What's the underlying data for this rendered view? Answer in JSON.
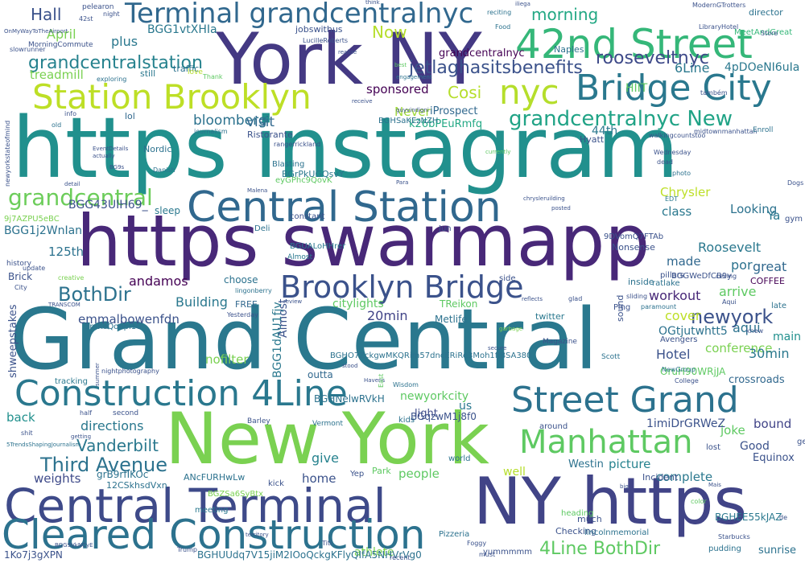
{
  "words": [
    {
      "t": "https instagram",
      "c": "#21908d"
    },
    {
      "t": "Grand Central",
      "c": "#2a788e"
    },
    {
      "t": "https swarmapp",
      "c": "#482878"
    },
    {
      "t": "York NY",
      "c": "#443983"
    },
    {
      "t": "New York",
      "c": "#7ad151"
    },
    {
      "t": "Central Terminal",
      "c": "#3e4a89"
    },
    {
      "t": "NY https",
      "c": "#414487"
    },
    {
      "t": "Cleared Construction",
      "c": "#2c728e"
    },
    {
      "t": "Central Station",
      "c": "#31688e"
    },
    {
      "t": "42nd Street",
      "c": "#35b779"
    },
    {
      "t": "Construction 4Line",
      "c": "#2a788e"
    },
    {
      "t": "Street Grand",
      "c": "#2c728e"
    },
    {
      "t": "Manhattan",
      "c": "#5ec962"
    },
    {
      "t": "Bridge City",
      "c": "#2a788e"
    },
    {
      "t": "Station Brooklyn",
      "c": "#bddf26"
    },
    {
      "t": "Brooklyn Bridge",
      "c": "#3b528b"
    },
    {
      "t": "Terminal grandcentralnyc",
      "c": "#31688e"
    },
    {
      "t": "nyc",
      "c": "#b5de2b"
    },
    {
      "t": "grandcentralnyc New",
      "c": "#20a386"
    },
    {
      "t": "grandcentralstation",
      "c": "#26828e"
    },
    {
      "t": "grandcentral",
      "c": "#6ccd5a"
    },
    {
      "t": "rooseveltnyc",
      "c": "#3e4a89"
    },
    {
      "t": "jetlaghasitsbenefits",
      "c": "#3b528b"
    },
    {
      "t": "Third Avenue",
      "c": "#2c728e"
    },
    {
      "t": "newyork",
      "c": "#3b528b"
    },
    {
      "t": "Vanderbilt",
      "c": "#2a788e"
    },
    {
      "t": "BothDir",
      "c": "#2c728e"
    },
    {
      "t": "4Line BothDir",
      "c": "#5ec962"
    },
    {
      "t": "Hall",
      "c": "#3b528b"
    },
    {
      "t": "morning",
      "c": "#22a884"
    },
    {
      "t": "Now",
      "c": "#b5de2b"
    },
    {
      "t": "Cosi",
      "c": "#b5de2b"
    },
    {
      "t": "April",
      "c": "#7ad151"
    },
    {
      "t": "plus",
      "c": "#2a788e"
    },
    {
      "t": "treadmill",
      "c": "#7ad151"
    },
    {
      "t": "bloomberg",
      "c": "#2c728e"
    },
    {
      "t": "visit",
      "c": "#31688e"
    },
    {
      "t": "Never",
      "c": "#a0da39"
    },
    {
      "t": "sponsored",
      "c": "#440154"
    },
    {
      "t": "Building",
      "c": "#2a788e"
    },
    {
      "t": "andamos",
      "c": "#440154"
    },
    {
      "t": "Roosevelt",
      "c": "#2a788e"
    },
    {
      "t": "great",
      "c": "#31688e"
    },
    {
      "t": "arrive",
      "c": "#5ec962"
    },
    {
      "t": "workout",
      "c": "#482878"
    },
    {
      "t": "conference",
      "c": "#7ad151"
    },
    {
      "t": "Hotel",
      "c": "#3b528b"
    },
    {
      "t": "30min",
      "c": "#2a788e"
    },
    {
      "t": "20min",
      "c": "#404387"
    },
    {
      "t": "aqui",
      "c": "#2c728e"
    },
    {
      "t": "cover",
      "c": "#bddf26"
    },
    {
      "t": "made",
      "c": "#31688e"
    },
    {
      "t": "por",
      "c": "#2c728e"
    },
    {
      "t": "class",
      "c": "#2a788e"
    },
    {
      "t": "Chrysler",
      "c": "#bddf26"
    },
    {
      "t": "Looking",
      "c": "#2c728e"
    },
    {
      "t": "Ya",
      "c": "#2a788e"
    },
    {
      "t": "picture",
      "c": "#26828e"
    },
    {
      "t": "complete",
      "c": "#2a788e"
    },
    {
      "t": "directions",
      "c": "#2a788e"
    },
    {
      "t": "weights",
      "c": "#3e4a89"
    },
    {
      "t": "give",
      "c": "#26828e"
    },
    {
      "t": "home",
      "c": "#3b528b"
    },
    {
      "t": "people",
      "c": "#5ec962"
    },
    {
      "t": "back",
      "c": "#21908d"
    },
    {
      "t": "bound",
      "c": "#404387"
    },
    {
      "t": "joke",
      "c": "#5ec962"
    },
    {
      "t": "Good",
      "c": "#3b528b"
    },
    {
      "t": "main",
      "c": "#21908d"
    },
    {
      "t": "sunrise",
      "c": "#2c728e"
    },
    {
      "t": "athlete",
      "c": "#7ad151"
    },
    {
      "t": "emmalbowenfdn",
      "c": "#3b528b"
    },
    {
      "t": "newyorkcity",
      "c": "#5ec962"
    },
    {
      "t": "citylights",
      "c": "#5ec962"
    },
    {
      "t": "BGG1vtXHIa",
      "c": "#2a788e"
    },
    {
      "t": "BGG43UIH69_",
      "c": "#3b528b"
    },
    {
      "t": "BGG1j2WnIan",
      "c": "#2c728e"
    },
    {
      "t": "125th",
      "c": "#2c728e"
    },
    {
      "t": "nofilter",
      "c": "#7ad151"
    },
    {
      "t": "outta",
      "c": "#31688e"
    },
    {
      "t": "light",
      "c": "#3e4a89"
    },
    {
      "t": "us",
      "c": "#2a788e"
    },
    {
      "t": "kids",
      "c": "#2c728e"
    },
    {
      "t": "1imiDrGRWeZ",
      "c": "#3b528b"
    },
    {
      "t": "OGtjutwhtt5",
      "c": "#2c728e"
    },
    {
      "t": "k26bPEuRmfq",
      "c": "#22a884"
    },
    {
      "t": "iProspect",
      "c": "#31688e"
    },
    {
      "t": "grandcentralnyc",
      "c": "#440154"
    },
    {
      "t": "HIIT",
      "c": "#5ec962"
    },
    {
      "t": "6Line",
      "c": "#2a788e"
    },
    {
      "t": "4pDOeNI6uIa",
      "c": "#2a788e"
    },
    {
      "t": "44th",
      "c": "#2a788e"
    },
    {
      "t": "Metlife",
      "c": "#2c728e"
    },
    {
      "t": "TReikon",
      "c": "#5ec962"
    },
    {
      "t": "Westin",
      "c": "#2c728e"
    },
    {
      "t": "Equinox",
      "c": "#3b528b"
    },
    {
      "t": "Nordic",
      "c": "#2c728e"
    },
    {
      "t": "Ristorante",
      "c": "#3b528b"
    },
    {
      "t": "sleep",
      "c": "#2a788e"
    },
    {
      "t": "crossroads",
      "c": "#31688e"
    },
    {
      "t": "COFFEE",
      "c": "#440154"
    },
    {
      "t": "Brick",
      "c": "#3b528b"
    },
    {
      "t": "choose",
      "c": "#2c728e"
    },
    {
      "t": "FREE",
      "c": "#31688e"
    },
    {
      "t": "well",
      "c": "#b5de2b"
    },
    {
      "t": "twitter",
      "c": "#2a788e"
    },
    {
      "t": "Incident",
      "c": "#3b528b"
    },
    {
      "t": "Checking",
      "c": "#3b528b"
    },
    {
      "t": "much",
      "c": "#3b528b"
    },
    {
      "t": "ANcFURHwLw",
      "c": "#2c728e"
    },
    {
      "t": "kick",
      "c": "#3b528b"
    },
    {
      "t": "traffic",
      "c": "#2c728e"
    },
    {
      "t": "still",
      "c": "#2a788e"
    },
    {
      "t": "lol",
      "c": "#31688e"
    },
    {
      "t": "jobswithus",
      "c": "#3b528b"
    },
    {
      "t": "Naples",
      "c": "#2c728e"
    },
    {
      "t": "Hyatt",
      "c": "#3b528b"
    },
    {
      "t": "Ping",
      "c": "#3b528b"
    },
    {
      "t": "inside",
      "c": "#2c728e"
    },
    {
      "t": "late",
      "c": "#2c728e"
    },
    {
      "t": "gym",
      "c": "#3b528b"
    },
    {
      "t": "director",
      "c": "#2c728e"
    },
    {
      "t": "MeetAndGreat",
      "c": "#35b779"
    },
    {
      "t": "Nonsense",
      "c": "#3b528b"
    },
    {
      "t": "9DVomQ7FTAb",
      "c": "#3b528b"
    },
    {
      "t": "Blasting",
      "c": "#2c728e"
    },
    {
      "t": "constant",
      "c": "#3b528b"
    },
    {
      "t": "Deli",
      "c": "#2c728e"
    },
    {
      "t": "Almost",
      "c": "#2a788e"
    },
    {
      "t": "Jun",
      "c": "#3b528b"
    },
    {
      "t": "side",
      "c": "#3b528b"
    },
    {
      "t": "pillars",
      "c": "#3b528b"
    },
    {
      "t": "ratlake",
      "c": "#2c728e"
    },
    {
      "t": "Park",
      "c": "#5ec962"
    },
    {
      "t": "world",
      "c": "#2c728e"
    },
    {
      "t": "around",
      "c": "#3b528b"
    },
    {
      "t": "lost",
      "c": "#3b528b"
    },
    {
      "t": "get",
      "c": "#3b528b"
    },
    {
      "t": "Scott",
      "c": "#2c728e"
    },
    {
      "t": "Avengers",
      "c": "#3b528b"
    },
    {
      "t": "Vermont",
      "c": "#2c728e"
    },
    {
      "t": "second",
      "c": "#3b528b"
    },
    {
      "t": "meeting",
      "c": "#2a788e"
    },
    {
      "t": "pudding",
      "c": "#2c728e"
    },
    {
      "t": "history",
      "c": "#3b528b"
    },
    {
      "t": "tracking",
      "c": "#2a788e"
    },
    {
      "t": "shweepstakes",
      "c": "#3b528b"
    },
    {
      "t": "yummmmm",
      "c": "#3b528b"
    },
    {
      "t": "lincolnmemorial",
      "c": "#2c728e"
    },
    {
      "t": "Pizzeria",
      "c": "#2c728e"
    },
    {
      "t": "Yep",
      "c": "#3b528b"
    },
    {
      "t": "Barley",
      "c": "#3b528b"
    },
    {
      "t": "Wisdom",
      "c": "#2c728e"
    },
    {
      "t": "heading",
      "c": "#5ec962"
    },
    {
      "t": "Magazine",
      "c": "#3b528b"
    },
    {
      "t": "BGHEE55kJAZ",
      "c": "#2a788e"
    },
    {
      "t": "BGHNelwRVkH",
      "c": "#2c728e"
    },
    {
      "t": "BGHO7ZckgwMKQRim57dncERiRe3Moh1fJBSA380",
      "c": "#2c728e"
    },
    {
      "t": "BGG1dAU1fjv",
      "c": "#2a788e"
    },
    {
      "t": "BGHUUdq7V15jiM2IOoQckgKFlyQIfA5NHVrVg0",
      "c": "#2c728e"
    },
    {
      "t": "OruH90WRjJA",
      "c": "#5ec962"
    },
    {
      "t": "BGqzwM1j8f0",
      "c": "#3b528b"
    },
    {
      "t": "1Ko7j3gXPN",
      "c": "#3b528b"
    },
    {
      "t": "12CSkhsdVxn",
      "c": "#2c728e"
    },
    {
      "t": "grB9rfIKOc",
      "c": "#2c728e"
    },
    {
      "t": "3mKeQo6pl10",
      "c": "#2c728e"
    },
    {
      "t": "BGZSa6SyBtx",
      "c": "#7ad151"
    },
    {
      "t": "BGrPkUGQsvY",
      "c": "#2a788e"
    },
    {
      "t": "eyGPhc9QovK",
      "c": "#5ec962"
    },
    {
      "t": "BGUALoHHrer",
      "c": "#2a788e"
    },
    {
      "t": "BGHSaKEzNZH",
      "c": "#2c728e"
    },
    {
      "t": "BGGWeDfCB9y",
      "c": "#3b528b"
    },
    {
      "t": "9j7AZPU5eBC",
      "c": "#7ad151"
    },
    {
      "t": "slowrunner",
      "c": "#3b528b"
    },
    {
      "t": "MorningCommute",
      "c": "#3b528b"
    },
    {
      "t": "pelearon",
      "c": "#3b528b"
    },
    {
      "t": "42st",
      "c": "#3b528b"
    },
    {
      "t": "night",
      "c": "#3b528b"
    },
    {
      "t": "LucilleRoberts",
      "c": "#3b528b"
    },
    {
      "t": "reciting",
      "c": "#2c728e"
    },
    {
      "t": "Food",
      "c": "#2c728e"
    },
    {
      "t": "LibraryHotel",
      "c": "#3b528b"
    },
    {
      "t": "Store",
      "c": "#3b528b"
    },
    {
      "t": "ModernGTrotters",
      "c": "#3b528b"
    },
    {
      "t": "engagement",
      "c": "#2c728e"
    },
    {
      "t": "Thank",
      "c": "#5ec962"
    },
    {
      "t": "love",
      "c": "#b5de2b"
    },
    {
      "t": "também",
      "c": "#3b528b"
    },
    {
      "t": "walkingcountstoo",
      "c": "#3b528b"
    },
    {
      "t": "midtownmanhattan",
      "c": "#3b528b"
    },
    {
      "t": "Enroll",
      "c": "#2c728e"
    },
    {
      "t": "Wednesday",
      "c": "#3b528b"
    },
    {
      "t": "photo",
      "c": "#2c728e"
    },
    {
      "t": "Dogs",
      "c": "#3b528b"
    },
    {
      "t": "dead",
      "c": "#3b528b"
    },
    {
      "t": "ceiling",
      "c": "#3b528b"
    },
    {
      "t": "Aqui",
      "c": "#3b528b"
    },
    {
      "t": "knew",
      "c": "#3b528b"
    },
    {
      "t": "College",
      "c": "#3b528b"
    },
    {
      "t": "NewGroup",
      "c": "#2c728e"
    },
    {
      "t": "sliding",
      "c": "#3b528b"
    },
    {
      "t": "paramount",
      "c": "#2c728e"
    },
    {
      "t": "EDT",
      "c": "#2a788e"
    },
    {
      "t": "Yesterday",
      "c": "#3b528b"
    },
    {
      "t": "TRANSCOM",
      "c": "#3b528b"
    },
    {
      "t": "City",
      "c": "#3b528b"
    },
    {
      "t": "update",
      "c": "#3b528b"
    },
    {
      "t": "creative",
      "c": "#7ad151"
    },
    {
      "t": "lingonberry",
      "c": "#2c728e"
    },
    {
      "t": "rangerrickland",
      "c": "#3b528b"
    },
    {
      "t": "journalism",
      "c": "#2c728e"
    },
    {
      "t": "EventDetails",
      "c": "#3b528b"
    },
    {
      "t": "actually",
      "c": "#3b528b"
    },
    {
      "t": "Danish",
      "c": "#2c728e"
    },
    {
      "t": "exploring",
      "c": "#2c728e"
    },
    {
      "t": "info",
      "c": "#3b528b"
    },
    {
      "t": "old",
      "c": "#2c728e"
    },
    {
      "t": "detail",
      "c": "#3b528b"
    },
    {
      "t": "BG9s",
      "c": "#3b528b"
    },
    {
      "t": "Malena",
      "c": "#3b528b"
    },
    {
      "t": "Para",
      "c": "#3b528b"
    },
    {
      "t": "summer",
      "c": "#3b528b"
    },
    {
      "t": "realize",
      "c": "#3b528b"
    },
    {
      "t": "receive",
      "c": "#3b528b"
    },
    {
      "t": "guyvindigni",
      "c": "#3b528b"
    },
    {
      "t": "think",
      "c": "#3b528b"
    },
    {
      "t": "best",
      "c": "#5ec962"
    },
    {
      "t": "currently",
      "c": "#5ec962"
    },
    {
      "t": "chrysleruilding",
      "c": "#3b528b"
    },
    {
      "t": "posted",
      "c": "#3b528b"
    },
    {
      "t": "reflects",
      "c": "#3b528b"
    },
    {
      "t": "glad",
      "c": "#3b528b"
    },
    {
      "t": "garbage",
      "c": "#7ad151"
    },
    {
      "t": "secure",
      "c": "#3b528b"
    },
    {
      "t": "Havens",
      "c": "#3b528b"
    },
    {
      "t": "stood",
      "c": "#3b528b"
    },
    {
      "t": "getting",
      "c": "#3b528b"
    },
    {
      "t": "shit",
      "c": "#3b528b"
    },
    {
      "t": "half",
      "c": "#3b528b"
    },
    {
      "t": "nightphotography",
      "c": "#3b528b"
    },
    {
      "t": "Foggy",
      "c": "#3b528b"
    },
    {
      "t": "must",
      "c": "#3b528b"
    },
    {
      "t": "recent",
      "c": "#3b528b"
    },
    {
      "t": "Titi",
      "c": "#3b528b"
    },
    {
      "t": "Trump",
      "c": "#3b528b"
    },
    {
      "t": "territory",
      "c": "#3b528b"
    },
    {
      "t": "big",
      "c": "#3b528b"
    },
    {
      "t": "color",
      "c": "#5ec962"
    },
    {
      "t": "Mais",
      "c": "#3b528b"
    },
    {
      "t": "de",
      "c": "#3b528b"
    },
    {
      "t": "Starbucks",
      "c": "#3b528b"
    },
    {
      "t": "OnMyWayToTheAirport",
      "c": "#3b528b"
    },
    {
      "t": "newyorkstateofmind",
      "c": "#3b528b"
    },
    {
      "t": "5TrendsShapingJournalism",
      "c": "#2c728e"
    },
    {
      "t": "BGG9VkNCyE",
      "c": "#3b528b"
    },
    {
      "t": "East",
      "c": "#5ec962"
    },
    {
      "t": "Almost",
      "c": "#3b528b"
    },
    {
      "t": "sound",
      "c": "#3b528b"
    },
    {
      "t": "review",
      "c": "#3b528b"
    },
    {
      "t": "iliega",
      "c": "#3b528b"
    }
  ]
}
